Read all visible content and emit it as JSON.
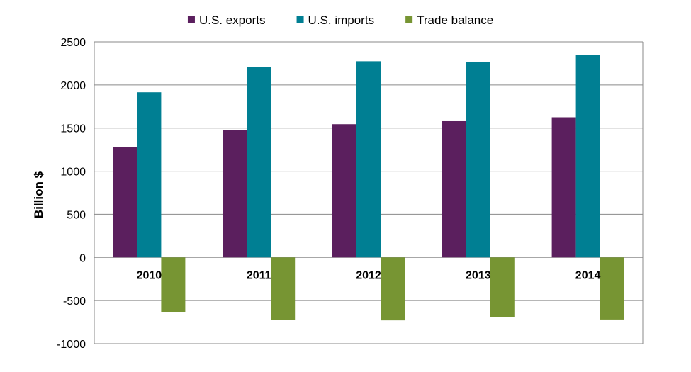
{
  "chart_data": {
    "type": "bar",
    "categories": [
      "2010",
      "2011",
      "2012",
      "2013",
      "2014"
    ],
    "series": [
      {
        "name": "U.S. exports",
        "color": "#5b1f5e",
        "values": [
          1280,
          1480,
          1545,
          1580,
          1625
        ]
      },
      {
        "name": "U.S. imports",
        "color": "#007f93",
        "values": [
          1915,
          2210,
          2275,
          2270,
          2350
        ]
      },
      {
        "name": "Trade balance",
        "color": "#779533",
        "values": [
          -635,
          -725,
          -730,
          -690,
          -720
        ]
      }
    ],
    "ylabel": "Billion $",
    "ylim": [
      -1000,
      2500
    ],
    "yticks": [
      2500,
      2000,
      1500,
      1000,
      500,
      0,
      -500,
      -1000
    ],
    "grid": true,
    "legend_position": "top-center"
  }
}
